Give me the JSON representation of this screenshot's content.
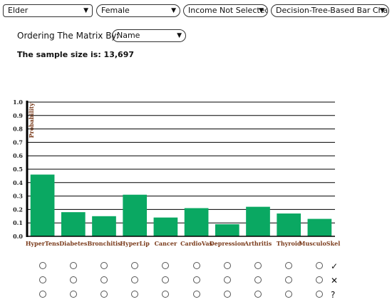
{
  "filters": {
    "age": "Elder",
    "sex": "Female",
    "income": "Income Not Selected",
    "chart_type": "Decision-Tree-Based Bar Chart"
  },
  "ordering": {
    "label": "Ordering The Matrix By:",
    "value": "Name"
  },
  "sample": {
    "text": "The sample size is: 13,697"
  },
  "chart_data": {
    "type": "bar",
    "categories": [
      "HyperTens",
      "Diabetes",
      "Bronchitis",
      "HyperLip",
      "Cancer",
      "CardioVas",
      "Depression",
      "Arthritis",
      "Thyroid",
      "MusculoSkel"
    ],
    "values": [
      0.46,
      0.18,
      0.15,
      0.31,
      0.14,
      0.21,
      0.09,
      0.22,
      0.17,
      0.13
    ],
    "ylabel": "Probability",
    "ylim": [
      0,
      1.0
    ],
    "yticks": [
      "0.0",
      "0.1",
      "0.2",
      "0.3",
      "0.4",
      "0.5",
      "0.6",
      "0.7",
      "0.8",
      "0.9",
      "1.0"
    ],
    "bar_color": "#0aa862",
    "grid": true
  },
  "rating_rows": [
    {
      "icon": "check-icon",
      "glyph": "✓"
    },
    {
      "icon": "cross-icon",
      "glyph": "✕"
    },
    {
      "icon": "question-icon",
      "glyph": "?"
    }
  ]
}
